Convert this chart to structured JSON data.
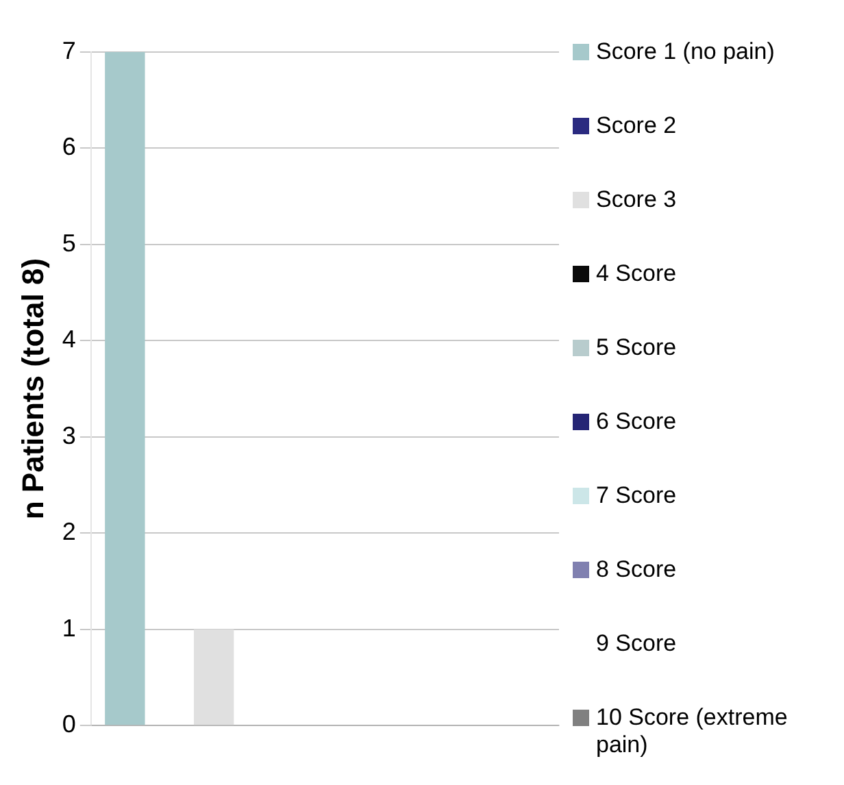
{
  "chart_data": {
    "type": "bar",
    "ylabel": "n Patients (total 8)",
    "categories": [
      null
    ],
    "series": [
      {
        "name": "Score 1 (no pain)",
        "color": "#a6c9cb",
        "values": [
          7
        ]
      },
      {
        "name": "Score 2",
        "color": "#2a2a80",
        "values": [
          0
        ]
      },
      {
        "name": "Score 3",
        "color": "#e0e0e0",
        "values": [
          1
        ]
      },
      {
        "name": "4 Score",
        "color": "#0a0a0a",
        "values": [
          0
        ]
      },
      {
        "name": "5 Score",
        "color": "#b8cccd",
        "values": [
          0
        ]
      },
      {
        "name": "6 Score",
        "color": "#252575",
        "values": [
          0
        ]
      },
      {
        "name": "7 Score",
        "color": "#cce6e8",
        "values": [
          0
        ]
      },
      {
        "name": "8 Score",
        "color": "#8080b0",
        "values": [
          0
        ]
      },
      {
        "name": "9 Score",
        "values": [
          0
        ]
      },
      {
        "name": "10 Score (extreme pain)",
        "color": "#808080",
        "values": [
          0
        ]
      }
    ],
    "ylim": [
      0,
      7
    ],
    "yticks": [
      0,
      1,
      2,
      3,
      4,
      5,
      6,
      7
    ],
    "grid": "y",
    "legend": "right"
  }
}
